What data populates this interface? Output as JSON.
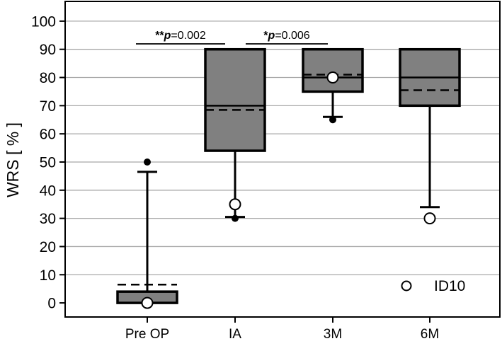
{
  "chart_data": {
    "type": "box",
    "ylabel": "WRS [ % ]",
    "xlabel": "",
    "ylim": [
      -5,
      107
    ],
    "yticks": [
      0,
      10,
      20,
      30,
      40,
      50,
      60,
      70,
      80,
      90,
      100
    ],
    "grid": "horizontal",
    "categories": [
      "Pre OP",
      "IA",
      "3M",
      "6M"
    ],
    "boxes": [
      {
        "category": "Pre OP",
        "q1": 0,
        "median": 0,
        "q3": 4,
        "mean": 6.5,
        "whisker_low": 0,
        "whisker_high": 46.5,
        "outliers": [
          50
        ]
      },
      {
        "category": "IA",
        "q1": 54,
        "median": 70,
        "q3": 90,
        "mean": 68.5,
        "whisker_low": 30.5,
        "whisker_high": 90,
        "outliers": [
          30
        ]
      },
      {
        "category": "3M",
        "q1": 75,
        "median": 80,
        "q3": 90,
        "mean": 81,
        "whisker_low": 66,
        "whisker_high": 90,
        "outliers": [
          65
        ]
      },
      {
        "category": "6M",
        "q1": 70,
        "median": 80,
        "q3": 90,
        "mean": 75.5,
        "whisker_low": 34,
        "whisker_high": 90,
        "outliers": []
      }
    ],
    "highlight": {
      "label": "ID10",
      "values": [
        0,
        35,
        80,
        30
      ]
    },
    "significance": [
      {
        "from": "Pre OP",
        "to": "IA",
        "stars": "**",
        "p_symbol": "p",
        "p_text": "=0.002"
      },
      {
        "from": "IA",
        "to": "3M",
        "stars": "*",
        "p_symbol": "p",
        "p_text": "=0.006"
      }
    ],
    "legend": {
      "position": "bottom-right",
      "label": "ID10"
    },
    "colors": {
      "box_fill": "#808080",
      "grid": "#a8a8a8",
      "frame": "#000000"
    }
  }
}
